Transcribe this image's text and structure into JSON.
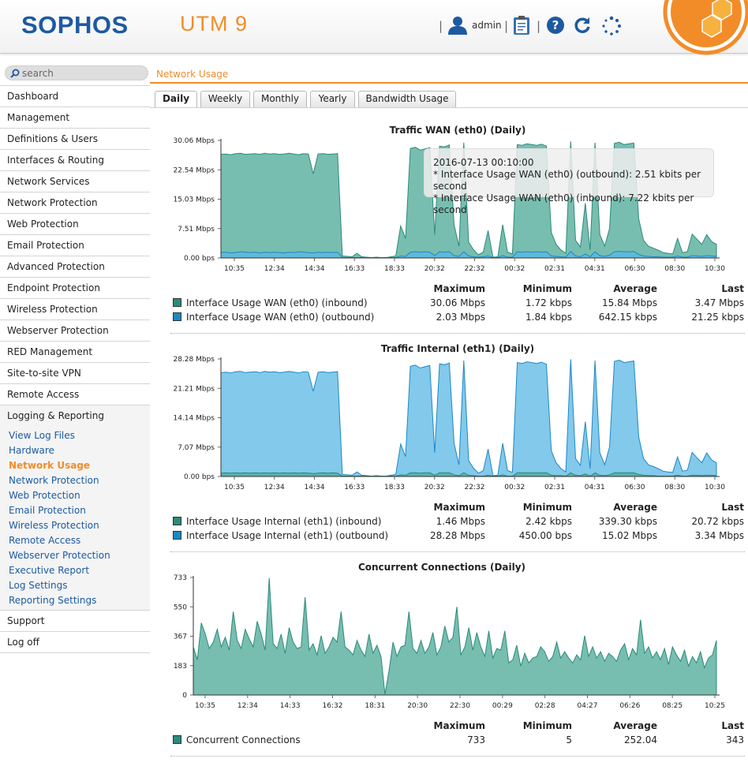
{
  "header": {
    "logo": "SOPHOS",
    "product": "UTM 9",
    "user": "admin",
    "sep": "|"
  },
  "search": {
    "placeholder": "search"
  },
  "breadcrumb": "Network Usage",
  "nav": {
    "items": [
      "Dashboard",
      "Management",
      "Definitions & Users",
      "Interfaces & Routing",
      "Network Services",
      "Network Protection",
      "Web Protection",
      "Email Protection",
      "Advanced Protection",
      "Endpoint Protection",
      "Wireless Protection",
      "Webserver Protection",
      "RED Management",
      "Site-to-site VPN",
      "Remote Access",
      "Logging & Reporting"
    ],
    "sub_items": [
      "View Log Files",
      "Hardware",
      "Network Usage",
      "Network Protection",
      "Web Protection",
      "Email Protection",
      "Wireless Protection",
      "Remote Access",
      "Webserver Protection",
      "Executive Report",
      "Log Settings",
      "Reporting Settings"
    ],
    "bottom_items": [
      "Support",
      "Log off"
    ]
  },
  "tabs": [
    "Daily",
    "Weekly",
    "Monthly",
    "Yearly",
    "Bandwidth Usage"
  ],
  "stats_headers": [
    "Maximum",
    "Minimum",
    "Average",
    "Last"
  ],
  "tooltip": {
    "time": "2016-07-13 00:10:00",
    "line1": "* Interface Usage WAN (eth0) (outbound): 2.51 kbits per second",
    "line2": "* Interface Usage WAN (eth0) (inbound): 7.22 kbits per second"
  },
  "colors": {
    "teal": "#62b8a8",
    "teal_line": "#2c8a7a",
    "blue": "#58b7e4",
    "blue_line": "#1d88c4",
    "accent": "#f28c28",
    "brand": "#1d5aa1"
  },
  "chart_data": [
    {
      "type": "area",
      "title": "Traffic WAN (eth0) (Daily)",
      "ylabels": [
        "30.06 Mbps",
        "22.54 Mbps",
        "15.03 Mbps",
        "7.51 Mbps",
        "0.00 bps"
      ],
      "ylim": [
        0,
        30.06
      ],
      "xlabels": [
        "10:35",
        "12:34",
        "14:34",
        "16:33",
        "18:33",
        "20:32",
        "22:32",
        "00:32",
        "02:31",
        "04:31",
        "06:30",
        "08:30",
        "10:30"
      ],
      "series": [
        {
          "name": "Interface Usage WAN (eth0) (inbound)",
          "color": "#62b8a8",
          "values": [
            26.5,
            26.6,
            26.4,
            26.7,
            26.8,
            26.5,
            26.6,
            26.7,
            26.5,
            26.8,
            26.6,
            26.7,
            26.5,
            26.6,
            26.8,
            26.6,
            26.4,
            26.7,
            26.6,
            21.5,
            26.6,
            26.7,
            26.5,
            26.6,
            26.7,
            0.5,
            0.4,
            0.3,
            1.2,
            0.3,
            0.2,
            0.1,
            0.2,
            0.1,
            0.1,
            0.3,
            0.5,
            8.2,
            5.0,
            28.0,
            28.3,
            27.6,
            27.9,
            28.2,
            6.0,
            28.6,
            28.4,
            28.9,
            8.5,
            3.0,
            29.5,
            4.0,
            2.1,
            0.8,
            1.5,
            7.0,
            0.2,
            0.3,
            8.5,
            1.5,
            1.0,
            29.0,
            28.8,
            29.2,
            29.0,
            28.8,
            29.1,
            28.6,
            6.5,
            3.5,
            2.0,
            1.2,
            29.8,
            4.5,
            2.8,
            14.0,
            2.0,
            29.5,
            6.0,
            3.0,
            7.5,
            29.3,
            29.6,
            29.0,
            29.2,
            29.4,
            10.0,
            4.5,
            3.0,
            2.5,
            2.0,
            1.4,
            1.2,
            1.0,
            5.0,
            1.4,
            1.6,
            6.1,
            4.8,
            3.5,
            6.0,
            4.2,
            3.5
          ]
        },
        {
          "name": "Interface Usage WAN (eth0) (outbound)",
          "color": "#58b7e4",
          "values": [
            1.4,
            1.5,
            1.3,
            1.4,
            1.6,
            1.5,
            1.4,
            1.5,
            1.3,
            1.5,
            1.4,
            1.5,
            1.4,
            1.3,
            1.5,
            1.4,
            1.6,
            1.5,
            1.4,
            1.3,
            1.5,
            1.4,
            1.5,
            1.4,
            1.5,
            0.1,
            0.1,
            0.1,
            0.1,
            0.1,
            0.1,
            0.1,
            0.1,
            0.1,
            0.1,
            0.1,
            0.1,
            0.5,
            0.4,
            1.5,
            1.6,
            1.5,
            1.6,
            1.5,
            0.6,
            1.6,
            1.5,
            1.6,
            0.6,
            0.4,
            1.6,
            0.5,
            0.3,
            0.2,
            0.3,
            0.5,
            0.1,
            0.1,
            0.6,
            0.2,
            0.2,
            1.6,
            1.5,
            1.6,
            1.5,
            1.6,
            1.5,
            1.6,
            0.5,
            0.4,
            0.3,
            0.2,
            1.7,
            0.5,
            0.3,
            1.0,
            0.3,
            1.6,
            0.6,
            0.4,
            0.7,
            1.6,
            1.7,
            1.6,
            1.6,
            1.7,
            0.9,
            0.5,
            0.4,
            0.3,
            0.3,
            0.2,
            0.2,
            0.2,
            0.5,
            0.2,
            0.2,
            0.6,
            0.5,
            0.4,
            0.6,
            0.5,
            0.4
          ]
        }
      ],
      "table": [
        {
          "name": "Interface Usage WAN (eth0) (inbound)",
          "color": "#2c8a7a",
          "max": "30.06 Mbps",
          "min": "1.72 kbps",
          "avg": "15.84 Mbps",
          "last": "3.47 Mbps"
        },
        {
          "name": "Interface Usage WAN (eth0) (outbound)",
          "color": "#1d88c4",
          "max": "2.03 Mbps",
          "min": "1.84 kbps",
          "avg": "642.15 kbps",
          "last": "21.25 kbps"
        }
      ]
    },
    {
      "type": "area",
      "title": "Traffic Internal (eth1) (Daily)",
      "ylabels": [
        "28.28 Mbps",
        "21.21 Mbps",
        "14.14 Mbps",
        "7.07 Mbps",
        "0.00 bps"
      ],
      "ylim": [
        0,
        28.28
      ],
      "xlabels": [
        "10:35",
        "12:34",
        "14:34",
        "16:33",
        "18:33",
        "20:32",
        "22:32",
        "00:32",
        "02:31",
        "04:31",
        "06:30",
        "08:30",
        "10:30"
      ],
      "series": [
        {
          "name": "Interface Usage Internal (eth1) (inbound)",
          "color": "#62b8a8",
          "values": [
            0.8,
            0.9,
            0.8,
            0.9,
            0.8,
            0.9,
            0.8,
            0.9,
            0.8,
            0.9,
            0.8,
            0.9,
            0.8,
            0.9,
            0.8,
            0.9,
            0.8,
            0.9,
            0.8,
            0.7,
            0.8,
            0.9,
            0.8,
            0.9,
            0.8,
            0.1,
            0.1,
            0.1,
            0.1,
            0.1,
            0.1,
            0.1,
            0.1,
            0.1,
            0.1,
            0.1,
            0.1,
            0.4,
            0.3,
            0.9,
            0.9,
            0.8,
            0.9,
            0.9,
            0.3,
            0.9,
            0.9,
            0.9,
            0.4,
            0.2,
            0.9,
            0.3,
            0.2,
            0.1,
            0.1,
            0.3,
            0.1,
            0.1,
            0.4,
            0.1,
            0.1,
            0.9,
            0.9,
            0.9,
            0.9,
            0.9,
            0.9,
            0.9,
            0.3,
            0.2,
            0.2,
            0.1,
            0.9,
            0.3,
            0.2,
            0.6,
            0.1,
            0.9,
            0.3,
            0.2,
            0.4,
            0.9,
            0.9,
            0.9,
            0.9,
            0.9,
            0.5,
            0.3,
            0.2,
            0.2,
            0.1,
            0.1,
            0.1,
            0.1,
            0.3,
            0.1,
            0.1,
            0.3,
            0.3,
            0.2,
            0.3,
            0.3,
            0.2
          ]
        },
        {
          "name": "Interface Usage Internal (eth1) (outbound)",
          "color": "#58b7e4",
          "values": [
            25.0,
            25.1,
            24.9,
            25.2,
            25.3,
            25.0,
            25.1,
            25.2,
            25.0,
            25.3,
            25.1,
            25.2,
            25.0,
            25.1,
            25.3,
            25.1,
            24.9,
            25.2,
            25.1,
            20.5,
            25.1,
            25.2,
            25.0,
            25.1,
            25.2,
            0.5,
            0.4,
            0.3,
            1.1,
            0.3,
            0.2,
            0.1,
            0.2,
            0.1,
            0.1,
            0.3,
            0.5,
            7.8,
            4.8,
            26.5,
            26.8,
            26.1,
            26.4,
            26.7,
            5.7,
            27.1,
            26.9,
            27.3,
            8.0,
            2.8,
            27.9,
            3.8,
            2.0,
            0.8,
            1.4,
            6.6,
            0.2,
            0.3,
            8.0,
            1.4,
            1.0,
            27.4,
            27.2,
            27.6,
            27.4,
            27.2,
            27.5,
            27.0,
            6.2,
            3.3,
            1.9,
            1.1,
            28.2,
            4.3,
            2.7,
            13.2,
            1.9,
            27.9,
            5.7,
            2.8,
            7.1,
            27.7,
            28.0,
            27.4,
            27.6,
            27.8,
            9.5,
            4.3,
            2.8,
            2.4,
            1.9,
            1.3,
            1.1,
            1.0,
            4.7,
            1.3,
            1.5,
            5.8,
            4.5,
            3.3,
            5.7,
            4.0,
            3.3
          ]
        }
      ],
      "table": [
        {
          "name": "Interface Usage Internal (eth1) (inbound)",
          "color": "#2c8a7a",
          "max": "1.46 Mbps",
          "min": "2.42 kbps",
          "avg": "339.30 kbps",
          "last": "20.72 kbps"
        },
        {
          "name": "Interface Usage Internal (eth1) (outbound)",
          "color": "#1d88c4",
          "max": "28.28 Mbps",
          "min": "450.00 bps",
          "avg": "15.02 Mbps",
          "last": "3.34 Mbps"
        }
      ]
    },
    {
      "type": "area",
      "title": "Concurrent Connections (Daily)",
      "ylabels": [
        "733",
        "550",
        "367",
        "183",
        "0"
      ],
      "ylim": [
        0,
        733
      ],
      "xlabels": [
        "10:35",
        "12:34",
        "14:33",
        "16:32",
        "18:31",
        "20:30",
        "22:30",
        "00:29",
        "02:28",
        "04:27",
        "06:26",
        "08:25",
        "10:25"
      ],
      "series": [
        {
          "name": "Concurrent Connections",
          "color": "#62b8a8",
          "values": [
            300,
            220,
            450,
            380,
            290,
            330,
            410,
            300,
            360,
            280,
            520,
            340,
            290,
            410,
            350,
            300,
            460,
            380,
            280,
            730,
            320,
            290,
            380,
            260,
            420,
            330,
            290,
            300,
            610,
            280,
            320,
            250,
            370,
            260,
            300,
            360,
            330,
            520,
            300,
            280,
            250,
            340,
            280,
            240,
            380,
            260,
            310,
            240,
            5,
            150,
            330,
            240,
            300,
            310,
            520,
            290,
            260,
            340,
            260,
            300,
            390,
            250,
            300,
            430,
            330,
            360,
            550,
            250,
            300,
            420,
            280,
            390,
            300,
            240,
            400,
            230,
            290,
            280,
            400,
            200,
            220,
            310,
            180,
            260,
            200,
            230,
            240,
            300,
            270,
            210,
            240,
            330,
            230,
            270,
            230,
            200,
            250,
            220,
            370,
            240,
            300,
            230,
            270,
            210,
            260,
            240,
            210,
            280,
            320,
            220,
            290,
            250,
            470,
            260,
            300,
            230,
            270,
            220,
            290,
            190,
            300,
            250,
            210,
            280,
            180,
            240,
            200,
            270,
            170,
            230,
            250,
            340
          ]
        }
      ],
      "table": [
        {
          "name": "Concurrent Connections",
          "color": "#2c8a7a",
          "max": "733",
          "min": "5",
          "avg": "252.04",
          "last": "343"
        }
      ]
    }
  ]
}
